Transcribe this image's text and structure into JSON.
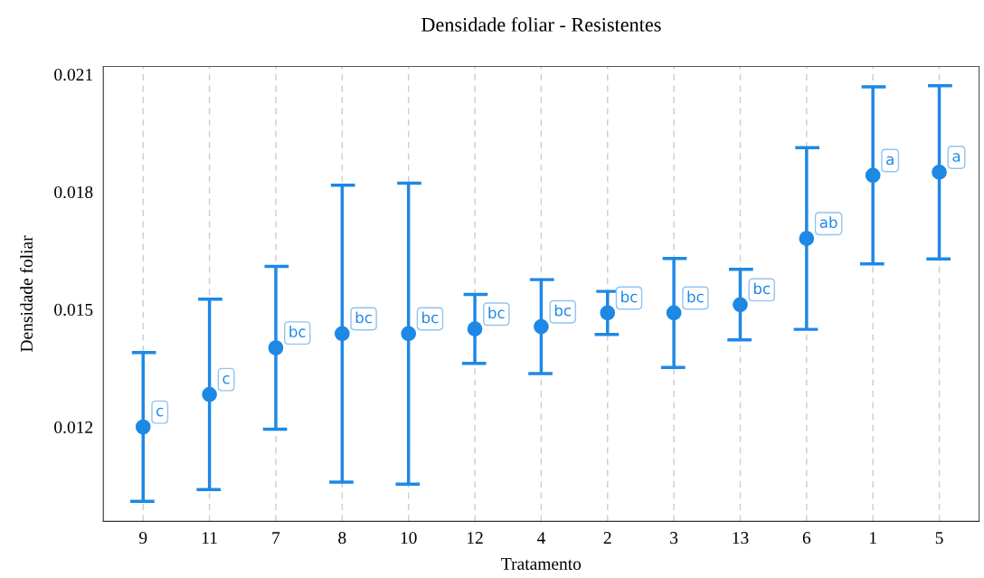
{
  "chart_data": {
    "type": "scatter",
    "title": "Densidade foliar - Resistentes",
    "xlabel": "Tratamento",
    "ylabel": "Densidade foliar",
    "categories": [
      "9",
      "11",
      "7",
      "8",
      "10",
      "12",
      "4",
      "2",
      "3",
      "13",
      "6",
      "1",
      "5"
    ],
    "values": [
      0.012,
      0.01283,
      0.01402,
      0.01438,
      0.01438,
      0.0145,
      0.01456,
      0.01491,
      0.01491,
      0.01512,
      0.01681,
      0.01842,
      0.0185
    ],
    "errors": [
      0.0019,
      0.00243,
      0.00208,
      0.00379,
      0.00384,
      0.00088,
      0.0012,
      0.00055,
      0.00139,
      0.0009,
      0.00232,
      0.00226,
      0.00221
    ],
    "color": "#1e88e5",
    "marker": "circle",
    "grid": "x",
    "ylim": [
      0.00959,
      0.0212
    ],
    "yticks": [
      0.012,
      0.015,
      0.018,
      0.021
    ],
    "annotations": [
      {
        "text": "c",
        "x": "9",
        "y": 0.012
      },
      {
        "text": "c",
        "x": "11",
        "y": 0.01283
      },
      {
        "text": "bc",
        "x": "7",
        "y": 0.01402
      },
      {
        "text": "bc",
        "x": "8",
        "y": 0.01438
      },
      {
        "text": "bc",
        "x": "10",
        "y": 0.01438
      },
      {
        "text": "bc",
        "x": "12",
        "y": 0.0145
      },
      {
        "text": "bc",
        "x": "4",
        "y": 0.01456
      },
      {
        "text": "bc",
        "x": "2",
        "y": 0.01491
      },
      {
        "text": "bc",
        "x": "3",
        "y": 0.01491
      },
      {
        "text": "bc",
        "x": "13",
        "y": 0.01512
      },
      {
        "text": "ab",
        "x": "6",
        "y": 0.01681
      },
      {
        "text": "a",
        "x": "1",
        "y": 0.01842
      },
      {
        "text": "a",
        "x": "5",
        "y": 0.0185
      }
    ]
  }
}
